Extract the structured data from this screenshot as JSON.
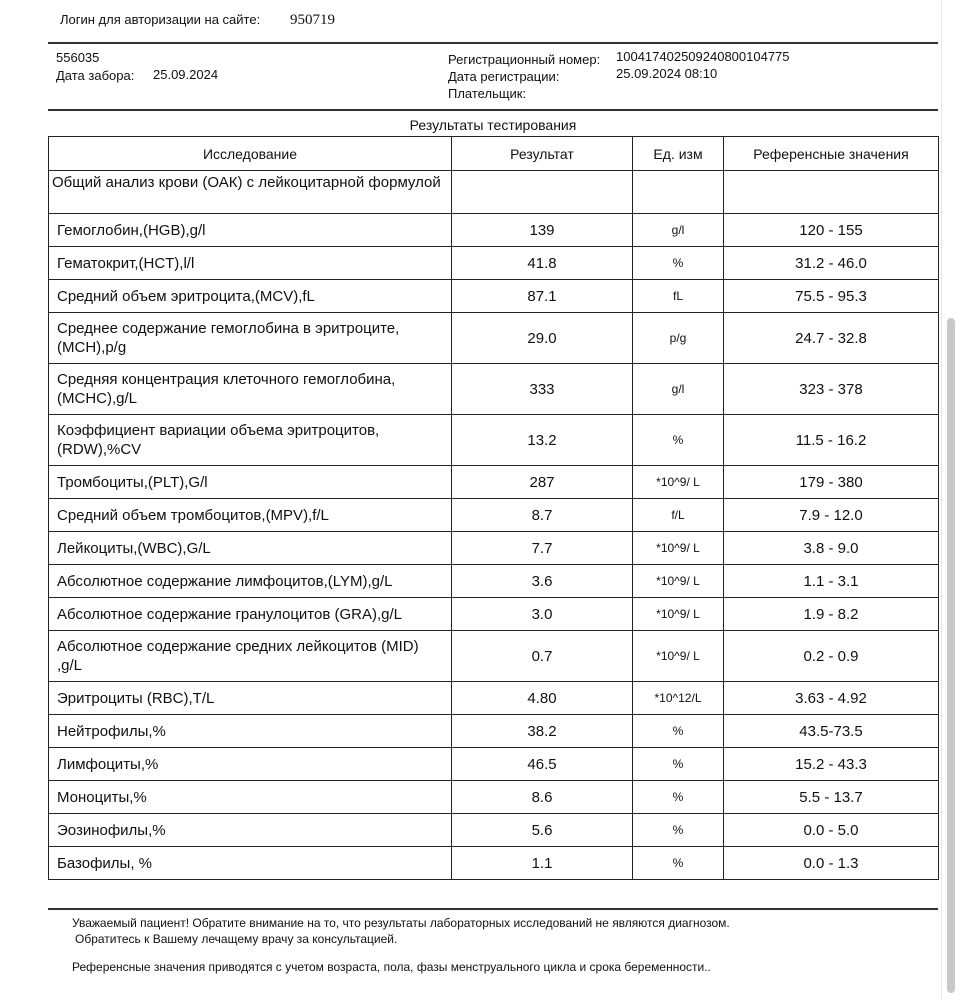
{
  "header": {
    "login_label": "Логин для авторизации на сайте:",
    "login_value": "950719",
    "patient_id": "556035",
    "collection_date_label": "Дата забора:",
    "collection_date": "25.09.2024",
    "reg_number_label": "Регистрационный номер:",
    "reg_number": "100417402509240800104775",
    "reg_date_label": "Дата регистрации:",
    "reg_date": "25.09.2024 08:10",
    "payer_label": "Плательщик:"
  },
  "results": {
    "title": "Результаты тестирования",
    "columns": [
      "Исследование",
      "Результат",
      "Ед. изм",
      "Референсные значения"
    ],
    "group": "Общий анализ крови (ОАК) с лейкоцитарной формулой",
    "rows": [
      {
        "name": "Гемоглобин,(HGB),g/l",
        "result": "139",
        "unit": "g/l",
        "ref": "120 - 155",
        "tall": false
      },
      {
        "name": "Гематокрит,(HCT),l/l",
        "result": "41.8",
        "unit": "%",
        "ref": "31.2 - 46.0",
        "tall": false
      },
      {
        "name": "Средний объем эритроцита,(MCV),fL",
        "result": "87.1",
        "unit": "fL",
        "ref": "75.5 - 95.3",
        "tall": false
      },
      {
        "name": "Среднее содержание гемоглобина в эритроците, (MCH),p/g",
        "result": "29.0",
        "unit": "p/g",
        "ref": "24.7 - 32.8",
        "tall": true
      },
      {
        "name": "Средняя концентрация клеточного гемоглобина, (MCHC),g/L",
        "result": "333",
        "unit": "g/l",
        "ref": "323 - 378",
        "tall": true
      },
      {
        "name": "Коэффициент вариации объема эритроцитов, (RDW),%CV",
        "result": "13.2",
        "unit": "%",
        "ref": "11.5 - 16.2",
        "tall": true
      },
      {
        "name": "Тромбоциты,(PLT),G/l",
        "result": "287",
        "unit": "*10^9/ L",
        "ref": "179 - 380",
        "tall": false
      },
      {
        "name": "Средний объем тромбоцитов,(MPV),f/L",
        "result": "8.7",
        "unit": "f/L",
        "ref": "7.9 - 12.0",
        "tall": false
      },
      {
        "name": "Лейкоциты,(WBC),G/L",
        "result": "7.7",
        "unit": "*10^9/ L",
        "ref": "3.8 - 9.0",
        "tall": false
      },
      {
        "name": "Абсолютное содержание лимфоцитов,(LYM),g/L",
        "result": "3.6",
        "unit": "*10^9/ L",
        "ref": "1.1 - 3.1",
        "tall": false
      },
      {
        "name": "Абсолютное содержание гранулоцитов (GRA),g/L",
        "result": "3.0",
        "unit": "*10^9/ L",
        "ref": "1.9 - 8.2",
        "tall": false
      },
      {
        "name": "Абсолютное содержание средних лейкоцитов (MID) ,g/L",
        "result": "0.7",
        "unit": "*10^9/ L",
        "ref": "0.2 - 0.9",
        "tall": true
      },
      {
        "name": "Эритроциты (RBC),T/L",
        "result": "4.80",
        "unit": "*10^12/L",
        "ref": "3.63 - 4.92",
        "tall": false
      },
      {
        "name": "Нейтрофилы,%",
        "result": "38.2",
        "unit": "%",
        "ref": "43.5-73.5",
        "tall": false
      },
      {
        "name": "Лимфоциты,%",
        "result": "46.5",
        "unit": "%",
        "ref": "15.2 - 43.3",
        "tall": false
      },
      {
        "name": "Моноциты,%",
        "result": "8.6",
        "unit": "%",
        "ref": "5.5 - 13.7",
        "tall": false
      },
      {
        "name": "Эозинофилы,%",
        "result": "5.6",
        "unit": "%",
        "ref": "0.0 - 5.0",
        "tall": false
      },
      {
        "name": "Базофилы, %",
        "result": "1.1",
        "unit": "%",
        "ref": "0.0 - 1.3",
        "tall": false
      }
    ]
  },
  "footer": {
    "notice_1": "Уважаемый пациент! Обратите внимание на то, что результаты лабораторных исследований не являются диагнозом.",
    "notice_2": "Обратитесь к Вашему лечащему врачу за консультацией.",
    "notice_3": "Референсные значения приводятся с учетом возраста, пола, фазы менструального цикла и срока беременности.."
  }
}
